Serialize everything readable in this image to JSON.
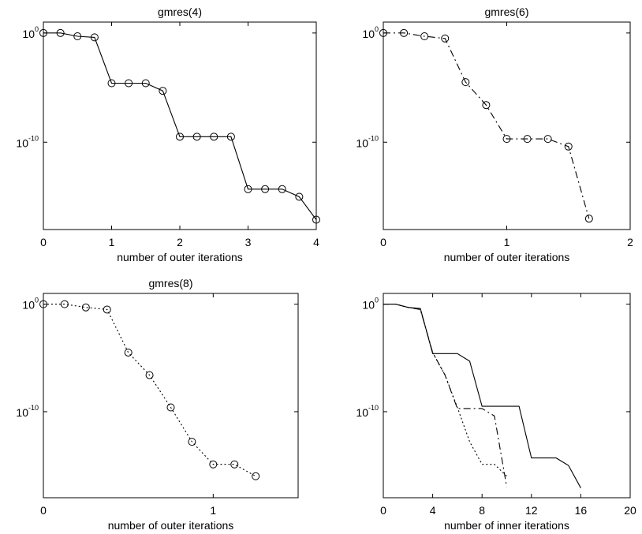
{
  "chart_data": [
    {
      "type": "line",
      "title": "gmres(4)",
      "xlabel": "number of outer iterations",
      "ylabel": "",
      "yscale": "log",
      "xlim": [
        0,
        4
      ],
      "ylim": [
        -18,
        1
      ],
      "xticks": [
        0,
        1,
        2,
        3,
        4
      ],
      "xtick_labels": [
        "0",
        "1",
        "2",
        "3",
        "4"
      ],
      "yticks": [
        {
          "value": 0,
          "base": "10",
          "exp": "0"
        },
        {
          "value": -10,
          "base": "10",
          "exp": "-10"
        }
      ],
      "grid": false,
      "series": [
        {
          "style": "solid",
          "marker": "circle",
          "x": [
            0,
            0.25,
            0.5,
            0.75,
            1,
            1.25,
            1.5,
            1.75,
            2,
            2.25,
            2.5,
            2.75,
            3,
            3.25,
            3.5,
            3.75,
            4
          ],
          "y": [
            0,
            0,
            -0.3,
            -0.4,
            -4.6,
            -4.6,
            -4.6,
            -5.3,
            -9.5,
            -9.5,
            -9.5,
            -9.5,
            -14.3,
            -14.3,
            -14.3,
            -15.0,
            -17.1
          ]
        }
      ]
    },
    {
      "type": "line",
      "title": "gmres(6)",
      "xlabel": "number of outer iterations",
      "ylabel": "",
      "yscale": "log",
      "xlim": [
        0,
        2
      ],
      "ylim": [
        -18,
        1
      ],
      "xticks": [
        0,
        1,
        2
      ],
      "xtick_labels": [
        "0",
        "1",
        "2"
      ],
      "yticks": [
        {
          "value": 0,
          "base": "10",
          "exp": "0"
        },
        {
          "value": -10,
          "base": "10",
          "exp": "-10"
        }
      ],
      "grid": false,
      "series": [
        {
          "style": "dashdot",
          "marker": "circle",
          "x": [
            0,
            0.1667,
            0.3333,
            0.5,
            0.6667,
            0.8333,
            1.0,
            1.1667,
            1.3333,
            1.5,
            1.6667
          ],
          "y": [
            0,
            0,
            -0.3,
            -0.5,
            -4.5,
            -6.6,
            -9.7,
            -9.7,
            -9.7,
            -10.4,
            -17.0
          ]
        }
      ]
    },
    {
      "type": "line",
      "title": "gmres(8)",
      "xlabel": "number of outer iterations",
      "ylabel": "",
      "yscale": "log",
      "xlim": [
        0,
        1.5
      ],
      "ylim": [
        -18,
        1
      ],
      "xticks": [
        0,
        1
      ],
      "xtick_labels": [
        "0",
        "1"
      ],
      "yticks": [
        {
          "value": 0,
          "base": "10",
          "exp": "0"
        },
        {
          "value": -10,
          "base": "10",
          "exp": "-10"
        }
      ],
      "grid": false,
      "series": [
        {
          "style": "dotted",
          "marker": "circle",
          "x": [
            0,
            0.125,
            0.25,
            0.375,
            0.5,
            0.625,
            0.75,
            0.875,
            1.0,
            1.125,
            1.25
          ],
          "y": [
            0,
            0,
            -0.3,
            -0.5,
            -4.5,
            -6.6,
            -9.6,
            -12.8,
            -14.9,
            -14.9,
            -16.0
          ]
        }
      ]
    },
    {
      "type": "line",
      "title": "",
      "xlabel": "number of inner iterations",
      "ylabel": "",
      "yscale": "log",
      "xlim": [
        0,
        20
      ],
      "ylim": [
        -18,
        1
      ],
      "xticks": [
        0,
        4,
        8,
        12,
        16,
        20
      ],
      "xtick_labels": [
        "0",
        "4",
        "8",
        "12",
        "16",
        "20"
      ],
      "yticks": [
        {
          "value": 0,
          "base": "10",
          "exp": "0"
        },
        {
          "value": -10,
          "base": "10",
          "exp": "-10"
        }
      ],
      "grid": false,
      "series": [
        {
          "style": "solid",
          "marker": "none",
          "x": [
            0,
            1,
            2,
            3,
            4,
            5,
            6,
            7,
            8,
            9,
            10,
            11,
            12,
            13,
            14,
            15,
            16
          ],
          "y": [
            0,
            0,
            -0.3,
            -0.4,
            -4.6,
            -4.6,
            -4.6,
            -5.3,
            -9.5,
            -9.5,
            -9.5,
            -9.5,
            -14.3,
            -14.3,
            -14.3,
            -15.0,
            -17.1
          ]
        },
        {
          "style": "dashdot",
          "marker": "none",
          "x": [
            0,
            1,
            2,
            3,
            4,
            5,
            6,
            7,
            8,
            9,
            10
          ],
          "y": [
            0,
            0,
            -0.3,
            -0.5,
            -4.5,
            -6.6,
            -9.7,
            -9.7,
            -9.7,
            -10.4,
            -17.0
          ]
        },
        {
          "style": "dotted",
          "marker": "none",
          "x": [
            0,
            1,
            2,
            3,
            4,
            5,
            6,
            7,
            8,
            9,
            10
          ],
          "y": [
            0,
            0,
            -0.3,
            -0.5,
            -4.5,
            -6.6,
            -9.6,
            -12.8,
            -14.9,
            -14.9,
            -16.0
          ]
        }
      ]
    }
  ]
}
